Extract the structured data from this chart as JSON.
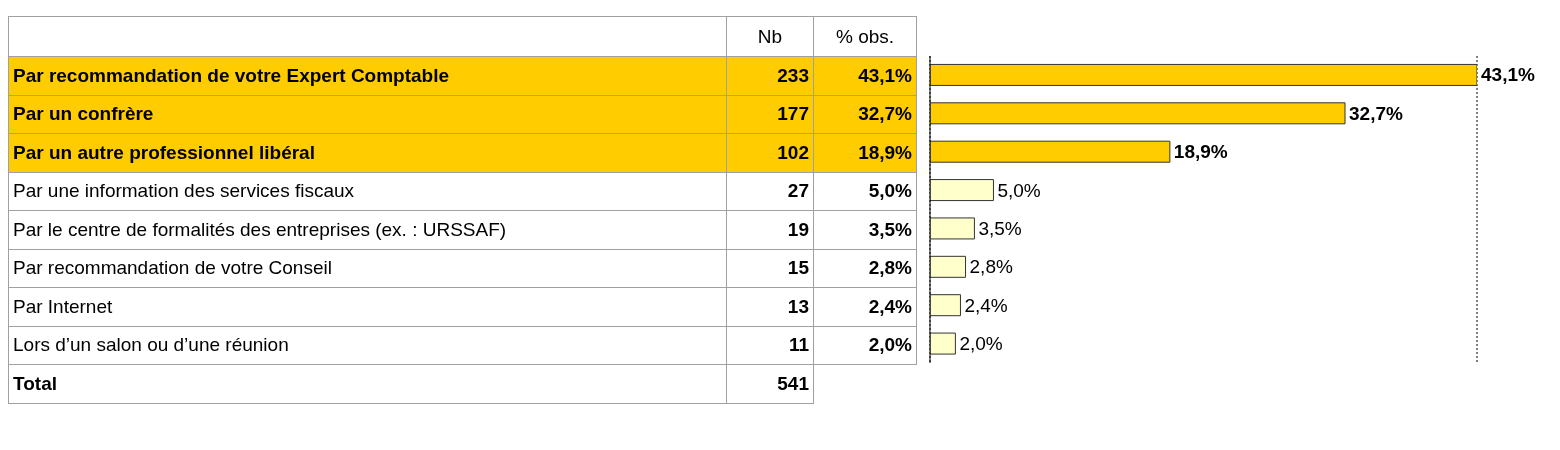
{
  "chart_data": {
    "type": "bar",
    "orientation": "horizontal",
    "categories": [
      "Par recommandation de votre Expert Comptable",
      "Par un confrère",
      "Par un autre professionnel libéral",
      "Par une information des services fiscaux",
      "Par le centre de formalités des entreprises (ex. : URSSAF)",
      "Par recommandation de votre Conseil",
      "Par Internet",
      "Lors d’un salon ou d’une réunion"
    ],
    "series": [
      {
        "name": "% obs.",
        "values": [
          43.1,
          32.7,
          18.9,
          5.0,
          3.5,
          2.8,
          2.4,
          2.0
        ],
        "colors": [
          "#ffcc00",
          "#ffcc00",
          "#ffcc00",
          "#ffffcc",
          "#ffffcc",
          "#ffffcc",
          "#ffffcc",
          "#ffffcc"
        ],
        "value_labels": [
          "43,1%",
          "32,7%",
          "18,9%",
          "5,0%",
          "3,5%",
          "2,8%",
          "2,4%",
          "2,0%"
        ]
      }
    ],
    "xlim": [
      0,
      43.1
    ],
    "grid": "x",
    "tick_labels": false,
    "annotations": [
      "Nb",
      "233",
      "177",
      "102",
      "27",
      "19",
      "15",
      "13",
      "11",
      "Total",
      "541"
    ]
  }
}
